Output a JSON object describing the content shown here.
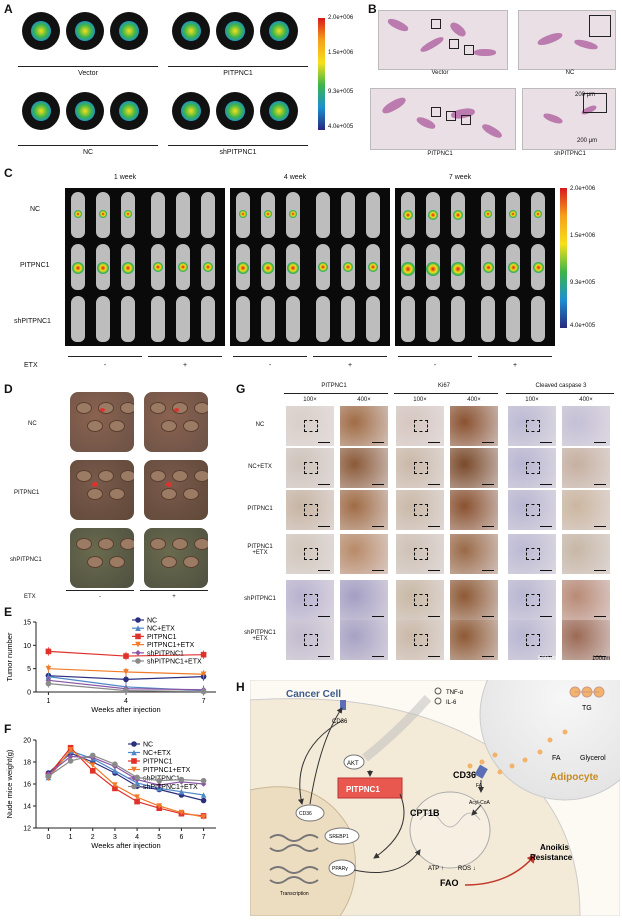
{
  "panels": {
    "A": "A",
    "B": "B",
    "C": "C",
    "D": "D",
    "E": "E",
    "F": "F",
    "G": "G",
    "H": "H"
  },
  "panelA": {
    "groups": [
      "Vector",
      "PITPNC1",
      "NC",
      "shPITPNC1"
    ],
    "colorbar": [
      "2.0e+006",
      "1.5e+006",
      "9.3e+005",
      "4.0e+005"
    ]
  },
  "panelB": {
    "labels": [
      "Vector",
      "NC",
      "PITPNC1",
      "shPITPNC1"
    ],
    "scale1": "200 μm",
    "scale2": "200 μm"
  },
  "panelC": {
    "timepoints": [
      "1 week",
      "4 week",
      "7 week"
    ],
    "rows": [
      "NC",
      "PITPNC1",
      "shPITPNC1"
    ],
    "etx_label": "ETX",
    "etx_signs": [
      "-",
      "+",
      "-",
      "+",
      "-",
      "+"
    ],
    "colorbar": [
      "2.0e+006",
      "1.5e+006",
      "9.3e+005",
      "4.0e+005"
    ]
  },
  "panelD": {
    "rows": [
      "NC",
      "PITPNC1",
      "shPITPNC1"
    ],
    "etx_label": "ETX",
    "etx_signs": [
      "-",
      "+"
    ]
  },
  "panelG": {
    "markers": [
      "PITPNC1",
      "Ki67",
      "Cleaved caspase 3"
    ],
    "mags": [
      "100×",
      "400×",
      "100×",
      "400×",
      "100×",
      "400×"
    ],
    "rows": [
      "NC",
      "NC+ETX",
      "PITPNC1",
      "PITPNC1\n+ETX",
      "shPITPNC1",
      "shPITPNC1\n+ETX"
    ],
    "scale1": "500um",
    "scale2": "100um"
  },
  "panelH": {
    "cancer_cell": "Cancer Cell",
    "adipocyte": "Adipocyte",
    "tg": "TG",
    "fa": "FA",
    "glycerol": "Glycerol",
    "cd36": "CD36",
    "cd36_small": "CD36",
    "cd36_circ": "CD36",
    "tnf": "TNF-α",
    "il6": "IL-6",
    "akt": "AKT",
    "pitpnc1": "PITPNC1",
    "srebp1": "SREBP1",
    "ppar": "PPARγ",
    "transcription": "Transcription",
    "fa2": "FA",
    "acylcoa": "Acyl-CoA",
    "cpt1b": "CPT1B",
    "atp": "ATP ↑",
    "ros": "ROS ↓",
    "fao": "FAO",
    "anoikis1": "Anoikis",
    "anoikis2": "Resistance"
  },
  "chart_data": [
    {
      "type": "line",
      "panel": "E",
      "xlabel": "Weeks after injection",
      "ylabel": "Tumor number",
      "x": [
        1,
        4,
        7
      ],
      "xticks": [
        "1",
        "4",
        "7"
      ],
      "ylim": [
        0,
        15
      ],
      "yticks": [
        "0",
        "5",
        "10",
        "15"
      ],
      "series": [
        {
          "name": "NC",
          "color": "#2b2f7e",
          "marker": "circle",
          "values": [
            3.5,
            2.7,
            3.3
          ]
        },
        {
          "name": "NC+ETX",
          "color": "#4f87c8",
          "marker": "triangle",
          "values": [
            3.3,
            1.1,
            0.3
          ]
        },
        {
          "name": "PITPNC1",
          "color": "#e0312b",
          "marker": "square",
          "values": [
            8.7,
            7.7,
            8.0
          ]
        },
        {
          "name": "PITPNC1+ETX",
          "color": "#f07b2a",
          "marker": "triangle-down",
          "values": [
            5.0,
            4.3,
            3.8
          ]
        },
        {
          "name": "shPITPNC1",
          "color": "#8a55a5",
          "marker": "diamond",
          "values": [
            2.5,
            0.7,
            0.5
          ]
        },
        {
          "name": "shPITPNC1+ETX",
          "color": "#8a8a8a",
          "marker": "circle",
          "values": [
            1.8,
            0.3,
            0.1
          ]
        }
      ]
    },
    {
      "type": "line",
      "panel": "F",
      "xlabel": "Weeks after injection",
      "ylabel": "Nude mice weight(g)",
      "x": [
        0,
        1,
        2,
        3,
        4,
        5,
        6,
        7
      ],
      "xticks": [
        "0",
        "1",
        "2",
        "3",
        "4",
        "5",
        "6",
        "7"
      ],
      "ylim": [
        12,
        20
      ],
      "yticks": [
        "12",
        "14",
        "16",
        "18",
        "20"
      ],
      "series": [
        {
          "name": "NC",
          "color": "#2b2f7e",
          "marker": "circle",
          "values": [
            17.0,
            18.8,
            18.0,
            17.0,
            15.8,
            15.5,
            15.0,
            14.5
          ]
        },
        {
          "name": "NC+ETX",
          "color": "#4f87c8",
          "marker": "triangle",
          "values": [
            16.6,
            19.0,
            18.3,
            17.2,
            16.1,
            15.6,
            15.3,
            15.0
          ]
        },
        {
          "name": "PITPNC1",
          "color": "#e0312b",
          "marker": "square",
          "values": [
            16.8,
            19.3,
            17.2,
            15.6,
            14.4,
            13.8,
            13.3,
            13.1
          ]
        },
        {
          "name": "PITPNC1+ETX",
          "color": "#f07b2a",
          "marker": "triangle-down",
          "values": [
            16.5,
            19.1,
            17.7,
            15.9,
            14.8,
            14.0,
            13.4,
            13.0
          ]
        },
        {
          "name": "shPITPNC1",
          "color": "#8a55a5",
          "marker": "diamond",
          "values": [
            16.9,
            18.5,
            18.4,
            17.6,
            16.4,
            15.9,
            16.2,
            16.0
          ]
        },
        {
          "name": "shPITPNC1+ETX",
          "color": "#8a8a8a",
          "marker": "circle",
          "values": [
            16.7,
            18.1,
            18.6,
            17.8,
            16.6,
            16.3,
            16.4,
            16.3
          ]
        }
      ]
    }
  ]
}
